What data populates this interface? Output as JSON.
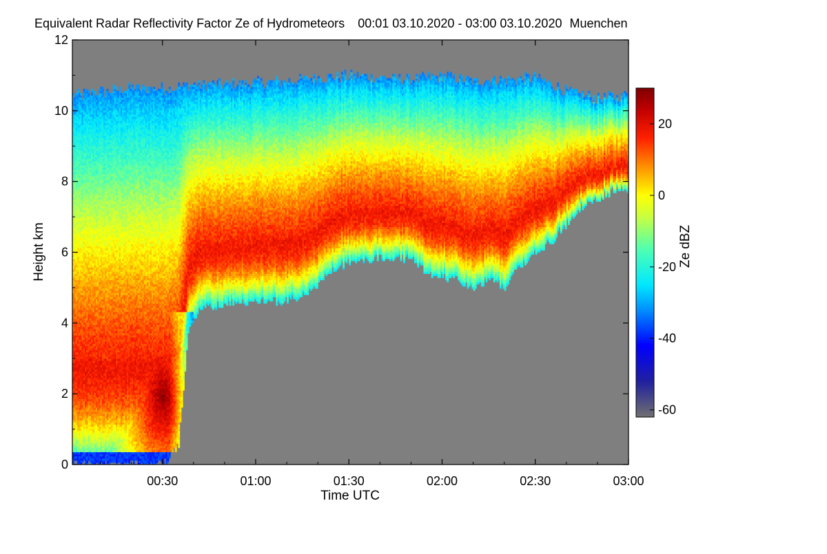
{
  "chart_data": {
    "type": "heatmap",
    "title": "Equivalent Radar Reflectivity Factor Ze of Hydrometeors",
    "time_range": "00:01 03.10.2020 - 03:00 03.10.2020",
    "location": "Muenchen",
    "xlabel": "Time UTC",
    "ylabel": "Height km",
    "colorbar_label": "Ze dBZ",
    "x_range_minutes": [
      1,
      180
    ],
    "x_ticks": [
      {
        "minutes": 30,
        "label": "00:30"
      },
      {
        "minutes": 60,
        "label": "01:00"
      },
      {
        "minutes": 90,
        "label": "01:30"
      },
      {
        "minutes": 120,
        "label": "02:00"
      },
      {
        "minutes": 150,
        "label": "02:30"
      },
      {
        "minutes": 180,
        "label": "03:00"
      }
    ],
    "y_range_km": [
      0,
      12
    ],
    "y_ticks": [
      {
        "value": 0,
        "label": "0"
      },
      {
        "value": 2,
        "label": "2"
      },
      {
        "value": 4,
        "label": "4"
      },
      {
        "value": 6,
        "label": "6"
      },
      {
        "value": 8,
        "label": "8"
      },
      {
        "value": 10,
        "label": "10"
      },
      {
        "value": 12,
        "label": "12"
      }
    ],
    "colorbar_range_dbz": [
      -62,
      30
    ],
    "colorbar_ticks": [
      {
        "value": 20,
        "label": "20"
      },
      {
        "value": 0,
        "label": "0"
      },
      {
        "value": -20,
        "label": "-20"
      },
      {
        "value": -40,
        "label": "-40"
      },
      {
        "value": -60,
        "label": "-60"
      }
    ],
    "colormap": [
      {
        "dbz": -62,
        "color": "#707070"
      },
      {
        "dbz": -52,
        "color": "#2020a0"
      },
      {
        "dbz": -42,
        "color": "#0000ff"
      },
      {
        "dbz": -32,
        "color": "#0090ff"
      },
      {
        "dbz": -25,
        "color": "#00e8ff"
      },
      {
        "dbz": -15,
        "color": "#50ffb0"
      },
      {
        "dbz": -6,
        "color": "#c8ff40"
      },
      {
        "dbz": 0,
        "color": "#ffff00"
      },
      {
        "dbz": 8,
        "color": "#ff9000"
      },
      {
        "dbz": 16,
        "color": "#ff2000"
      },
      {
        "dbz": 24,
        "color": "#c00000"
      },
      {
        "dbz": 30,
        "color": "#800000"
      }
    ],
    "no_signal_color": "#7f7f7f",
    "cloud_top_km": [
      {
        "t": 1,
        "h": 10.4
      },
      {
        "t": 10,
        "h": 10.5
      },
      {
        "t": 20,
        "h": 10.6
      },
      {
        "t": 30,
        "h": 10.6
      },
      {
        "t": 40,
        "h": 10.7
      },
      {
        "t": 50,
        "h": 10.7
      },
      {
        "t": 60,
        "h": 10.75
      },
      {
        "t": 70,
        "h": 10.8
      },
      {
        "t": 80,
        "h": 10.9
      },
      {
        "t": 90,
        "h": 10.95
      },
      {
        "t": 100,
        "h": 10.9
      },
      {
        "t": 110,
        "h": 10.85
      },
      {
        "t": 120,
        "h": 10.95
      },
      {
        "t": 130,
        "h": 10.8
      },
      {
        "t": 140,
        "h": 10.85
      },
      {
        "t": 150,
        "h": 10.9
      },
      {
        "t": 160,
        "h": 10.5
      },
      {
        "t": 170,
        "h": 10.3
      },
      {
        "t": 180,
        "h": 10.4
      }
    ],
    "cloud_base_km": [
      {
        "t": 1,
        "h": 0.0
      },
      {
        "t": 10,
        "h": 0.0
      },
      {
        "t": 20,
        "h": 0.0
      },
      {
        "t": 30,
        "h": 0.0
      },
      {
        "t": 35,
        "h": 0.5
      },
      {
        "t": 38,
        "h": 3.8
      },
      {
        "t": 42,
        "h": 4.4
      },
      {
        "t": 50,
        "h": 4.5
      },
      {
        "t": 60,
        "h": 4.6
      },
      {
        "t": 70,
        "h": 4.6
      },
      {
        "t": 75,
        "h": 4.8
      },
      {
        "t": 80,
        "h": 5.1
      },
      {
        "t": 85,
        "h": 5.5
      },
      {
        "t": 90,
        "h": 5.7
      },
      {
        "t": 100,
        "h": 5.8
      },
      {
        "t": 110,
        "h": 5.8
      },
      {
        "t": 115,
        "h": 5.4
      },
      {
        "t": 120,
        "h": 5.3
      },
      {
        "t": 125,
        "h": 5.2
      },
      {
        "t": 130,
        "h": 4.9
      },
      {
        "t": 135,
        "h": 5.2
      },
      {
        "t": 140,
        "h": 5.0
      },
      {
        "t": 145,
        "h": 5.6
      },
      {
        "t": 150,
        "h": 6.0
      },
      {
        "t": 155,
        "h": 6.3
      },
      {
        "t": 160,
        "h": 6.8
      },
      {
        "t": 165,
        "h": 7.3
      },
      {
        "t": 170,
        "h": 7.5
      },
      {
        "t": 175,
        "h": 7.7
      },
      {
        "t": 180,
        "h": 7.8
      }
    ],
    "peak_ze_dbz": 28
  }
}
